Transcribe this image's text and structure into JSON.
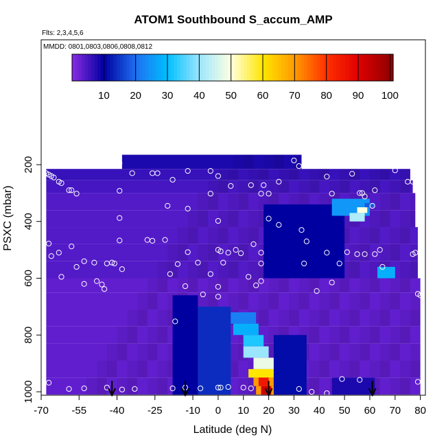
{
  "chart_data": {
    "type": "heatmap",
    "title": "ATOM1 Southbound S_accum_AMP",
    "subtitle_lines": [
      "Flts: 2,3,4,5,6",
      "MMDD: 0801,0803,0806,0808,0812"
    ],
    "xlabel": "Latitude (deg N)",
    "ylabel": "PSXC (mbar)",
    "xlim": [
      -70,
      82
    ],
    "ylim": [
      1010,
      100
    ],
    "y_reversed": true,
    "xticks": [
      -70,
      -55,
      -40,
      -25,
      -10,
      0,
      10,
      20,
      30,
      40,
      50,
      60,
      70,
      80
    ],
    "xtick_labels": [
      "-70",
      "-55",
      "-40",
      "-25",
      "-10",
      "0",
      "10",
      "20",
      "30",
      "40",
      "50",
      "60",
      "70",
      "80"
    ],
    "yticks": [
      200,
      400,
      600,
      800,
      1000
    ],
    "ytick_labels": [
      "200",
      "400",
      "600",
      "800",
      "1000"
    ],
    "colorbar": {
      "range": [
        0,
        101
      ],
      "ticks": [
        10,
        20,
        30,
        40,
        50,
        60,
        70,
        80,
        90,
        100
      ],
      "tick_labels": [
        "10",
        "20",
        "30",
        "40",
        "50",
        "60",
        "70",
        "80",
        "90",
        "100"
      ],
      "color_stops": [
        {
          "v": 0,
          "c": "#8a2be2"
        },
        {
          "v": 10,
          "c": "#0000a0"
        },
        {
          "v": 20,
          "c": "#1f6ff0"
        },
        {
          "v": 30,
          "c": "#00bfff"
        },
        {
          "v": 40,
          "c": "#9be6ff"
        },
        {
          "v": 50,
          "c": "#ffffe0"
        },
        {
          "v": 60,
          "c": "#ffe600"
        },
        {
          "v": 70,
          "c": "#ff9a00"
        },
        {
          "v": 80,
          "c": "#ff3000"
        },
        {
          "v": 90,
          "c": "#e00000"
        },
        {
          "v": 101,
          "c": "#8b0000"
        }
      ]
    },
    "heatmap_rows": [
      {
        "p": [
          165,
          215
        ],
        "lat": [
          -38,
          33
        ],
        "v": 8
      },
      {
        "p": [
          215,
          255
        ],
        "lat": [
          -68,
          76
        ],
        "v": 6
      },
      {
        "p": [
          255,
          300
        ],
        "lat": [
          -68,
          77
        ],
        "v": 5
      },
      {
        "p": [
          300,
          360
        ],
        "lat": [
          -68,
          78
        ],
        "v": 4
      },
      {
        "p": [
          360,
          420
        ],
        "lat": [
          -68,
          78
        ],
        "v": 4
      },
      {
        "p": [
          420,
          480
        ],
        "lat": [
          -68,
          79
        ],
        "v": 4
      },
      {
        "p": [
          480,
          540
        ],
        "lat": [
          -68,
          79
        ],
        "v": 4
      },
      {
        "p": [
          540,
          600
        ],
        "lat": [
          -68,
          79
        ],
        "v": 4
      },
      {
        "p": [
          600,
          650
        ],
        "lat": [
          -68,
          80
        ],
        "v": 3
      },
      {
        "p": [
          650,
          710
        ],
        "lat": [
          -68,
          80
        ],
        "v": 3
      },
      {
        "p": [
          710,
          770
        ],
        "lat": [
          -68,
          80
        ],
        "v": 3
      },
      {
        "p": [
          770,
          830
        ],
        "lat": [
          -68,
          80
        ],
        "v": 3
      },
      {
        "p": [
          830,
          890
        ],
        "lat": [
          -68,
          80
        ],
        "v": 3
      },
      {
        "p": [
          890,
          950
        ],
        "lat": [
          -68,
          80
        ],
        "v": 3
      },
      {
        "p": [
          950,
          1010
        ],
        "lat": [
          -68,
          80
        ],
        "v": 3
      }
    ],
    "heatmap_patches": [
      {
        "p": [
          340,
          600
        ],
        "lat": [
          18,
          50
        ],
        "v": 10
      },
      {
        "p": [
          320,
          380
        ],
        "lat": [
          45,
          60
        ],
        "v": 25
      },
      {
        "p": [
          350,
          370
        ],
        "lat": [
          55,
          59
        ],
        "v": 50
      },
      {
        "p": [
          370,
          400
        ],
        "lat": [
          52,
          58
        ],
        "v": 42
      },
      {
        "p": [
          335,
          350
        ],
        "lat": [
          58,
          62
        ],
        "v": 18
      },
      {
        "p": [
          560,
          600
        ],
        "lat": [
          63,
          70
        ],
        "v": 28
      },
      {
        "p": [
          660,
          1010
        ],
        "lat": [
          -18,
          -8
        ],
        "v": 10
      },
      {
        "p": [
          700,
          1010
        ],
        "lat": [
          -8,
          5
        ],
        "v": 14
      },
      {
        "p": [
          720,
          760
        ],
        "lat": [
          5,
          15
        ],
        "v": 22
      },
      {
        "p": [
          760,
          800
        ],
        "lat": [
          6,
          16
        ],
        "v": 28
      },
      {
        "p": [
          800,
          840
        ],
        "lat": [
          10,
          18
        ],
        "v": 32
      },
      {
        "p": [
          840,
          880
        ],
        "lat": [
          10,
          20
        ],
        "v": 40
      },
      {
        "p": [
          880,
          920
        ],
        "lat": [
          14,
          22
        ],
        "v": 48
      },
      {
        "p": [
          920,
          950
        ],
        "lat": [
          12,
          22
        ],
        "v": 60
      },
      {
        "p": [
          950,
          980
        ],
        "lat": [
          14,
          22
        ],
        "v": 70
      },
      {
        "p": [
          950,
          980
        ],
        "lat": [
          16,
          20
        ],
        "v": 85
      },
      {
        "p": [
          980,
          1010
        ],
        "lat": [
          15,
          25
        ],
        "v": 70
      },
      {
        "p": [
          980,
          1010
        ],
        "lat": [
          17,
          21
        ],
        "v": 92
      },
      {
        "p": [
          800,
          1010
        ],
        "lat": [
          22,
          35
        ],
        "v": 11
      },
      {
        "p": [
          950,
          1010
        ],
        "lat": [
          45,
          62
        ],
        "v": 8
      }
    ],
    "points": [
      {
        "lat": -39,
        "p": 195
      },
      {
        "lat": -68,
        "p": 230
      },
      {
        "lat": -67,
        "p": 235
      },
      {
        "lat": -66,
        "p": 240
      },
      {
        "lat": -65,
        "p": 245
      },
      {
        "lat": -63,
        "p": 260
      },
      {
        "lat": -62,
        "p": 265
      },
      {
        "lat": -34,
        "p": 230
      },
      {
        "lat": -26,
        "p": 230
      },
      {
        "lat": -24,
        "p": 230
      },
      {
        "lat": -12,
        "p": 222
      },
      {
        "lat": -3,
        "p": 222
      },
      {
        "lat": 30,
        "p": 185
      },
      {
        "lat": 32,
        "p": 205
      },
      {
        "lat": 53,
        "p": 232
      },
      {
        "lat": 70,
        "p": 220
      },
      {
        "lat": -59,
        "p": 290
      },
      {
        "lat": -58,
        "p": 290
      },
      {
        "lat": -56,
        "p": 302
      },
      {
        "lat": -39,
        "p": 292
      },
      {
        "lat": -18,
        "p": 253
      },
      {
        "lat": 0,
        "p": 240
      },
      {
        "lat": 13,
        "p": 272
      },
      {
        "lat": 18,
        "p": 272
      },
      {
        "lat": 20,
        "p": 302
      },
      {
        "lat": 17,
        "p": 302
      },
      {
        "lat": 24,
        "p": 260
      },
      {
        "lat": 43,
        "p": 242
      },
      {
        "lat": 56,
        "p": 300
      },
      {
        "lat": 57,
        "p": 300
      },
      {
        "lat": 58,
        "p": 312
      },
      {
        "lat": 61,
        "p": 345
      },
      {
        "lat": 77,
        "p": 260
      },
      {
        "lat": 75,
        "p": 260
      },
      {
        "lat": 62,
        "p": 290
      },
      {
        "lat": 45,
        "p": 302
      },
      {
        "lat": -20,
        "p": 345
      },
      {
        "lat": -12,
        "p": 355
      },
      {
        "lat": -3,
        "p": 302
      },
      {
        "lat": 5,
        "p": 275
      },
      {
        "lat": -39,
        "p": 388
      },
      {
        "lat": 0,
        "p": 398
      },
      {
        "lat": 20,
        "p": 390
      },
      {
        "lat": 24,
        "p": 412
      },
      {
        "lat": 33,
        "p": 430
      },
      {
        "lat": -39,
        "p": 467
      },
      {
        "lat": -28,
        "p": 465
      },
      {
        "lat": -26,
        "p": 468
      },
      {
        "lat": -21,
        "p": 465
      },
      {
        "lat": -12,
        "p": 508
      },
      {
        "lat": -67,
        "p": 478
      },
      {
        "lat": -58,
        "p": 488
      },
      {
        "lat": -56,
        "p": 560
      },
      {
        "lat": -53,
        "p": 540
      },
      {
        "lat": -49,
        "p": 545
      },
      {
        "lat": -44,
        "p": 548
      },
      {
        "lat": -42,
        "p": 545
      },
      {
        "lat": -41,
        "p": 548
      },
      {
        "lat": -38,
        "p": 568
      },
      {
        "lat": 0,
        "p": 500
      },
      {
        "lat": 1,
        "p": 505
      },
      {
        "lat": 7,
        "p": 500
      },
      {
        "lat": 4,
        "p": 510
      },
      {
        "lat": 9,
        "p": 512
      },
      {
        "lat": 14,
        "p": 480
      },
      {
        "lat": 17,
        "p": 510
      },
      {
        "lat": 35,
        "p": 470
      },
      {
        "lat": 43,
        "p": 510
      },
      {
        "lat": 51,
        "p": 508
      },
      {
        "lat": 55,
        "p": 515
      },
      {
        "lat": 58,
        "p": 515
      },
      {
        "lat": 62,
        "p": 515
      },
      {
        "lat": 64,
        "p": 500
      },
      {
        "lat": 65,
        "p": 560
      },
      {
        "lat": 77,
        "p": 515
      },
      {
        "lat": 78,
        "p": 510
      },
      {
        "lat": -63,
        "p": 510
      },
      {
        "lat": -66,
        "p": 522
      },
      {
        "lat": -16,
        "p": 550
      },
      {
        "lat": -8,
        "p": 545
      },
      {
        "lat": 2,
        "p": 545
      },
      {
        "lat": 17,
        "p": 548
      },
      {
        "lat": 34,
        "p": 548
      },
      {
        "lat": 48,
        "p": 548
      },
      {
        "lat": -62,
        "p": 595
      },
      {
        "lat": -53,
        "p": 620
      },
      {
        "lat": -48,
        "p": 610
      },
      {
        "lat": -46,
        "p": 622
      },
      {
        "lat": -45,
        "p": 638
      },
      {
        "lat": -19,
        "p": 585
      },
      {
        "lat": -13,
        "p": 628
      },
      {
        "lat": -3,
        "p": 585
      },
      {
        "lat": 0,
        "p": 630
      },
      {
        "lat": 12,
        "p": 595
      },
      {
        "lat": 15,
        "p": 625
      },
      {
        "lat": 17,
        "p": 610
      },
      {
        "lat": 39,
        "p": 645
      },
      {
        "lat": 45,
        "p": 615
      },
      {
        "lat": 79,
        "p": 655
      },
      {
        "lat": 80,
        "p": 660
      },
      {
        "lat": -6,
        "p": 657
      },
      {
        "lat": 0,
        "p": 665
      },
      {
        "lat": -17,
        "p": 752
      },
      {
        "lat": -67,
        "p": 968
      },
      {
        "lat": -59,
        "p": 990
      },
      {
        "lat": -53,
        "p": 988
      },
      {
        "lat": -44,
        "p": 985
      },
      {
        "lat": -38,
        "p": 992
      },
      {
        "lat": -33,
        "p": 990
      },
      {
        "lat": -18,
        "p": 988
      },
      {
        "lat": -13,
        "p": 985
      },
      {
        "lat": -7,
        "p": 988
      },
      {
        "lat": 0,
        "p": 985
      },
      {
        "lat": 1,
        "p": 985
      },
      {
        "lat": 4,
        "p": 983
      },
      {
        "lat": 10,
        "p": 985
      },
      {
        "lat": 13,
        "p": 988
      },
      {
        "lat": 32,
        "p": 990
      },
      {
        "lat": 37,
        "p": 1000
      },
      {
        "lat": 43,
        "p": 1005
      },
      {
        "lat": 49,
        "p": 955
      },
      {
        "lat": 56,
        "p": 958
      },
      {
        "lat": 79,
        "p": 965
      }
    ],
    "arrows_lat": [
      -42,
      -13,
      20,
      61
    ]
  }
}
